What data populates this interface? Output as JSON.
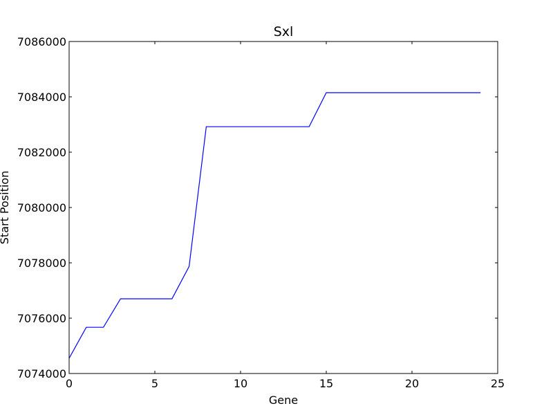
{
  "chart_data": {
    "type": "line",
    "title": "Sxl",
    "xlabel": "Gene",
    "ylabel": "Start Position",
    "xlim": [
      0,
      25
    ],
    "ylim": [
      7074000,
      7086000
    ],
    "xticks": [
      0,
      5,
      10,
      15,
      20,
      25
    ],
    "yticks": [
      7074000,
      7076000,
      7078000,
      7080000,
      7082000,
      7084000,
      7086000
    ],
    "grid": false,
    "series": [
      {
        "color": "#0000ff",
        "x": [
          0,
          1,
          2,
          3,
          4,
          5,
          6,
          7,
          8,
          9,
          10,
          11,
          12,
          13,
          14,
          15,
          16,
          17,
          18,
          19,
          20,
          21,
          22,
          23,
          24
        ],
        "y": [
          7074550,
          7075670,
          7075670,
          7076700,
          7076700,
          7076700,
          7076700,
          7077870,
          7082920,
          7082920,
          7082920,
          7082920,
          7082920,
          7082920,
          7082920,
          7084150,
          7084150,
          7084150,
          7084150,
          7084150,
          7084150,
          7084150,
          7084150,
          7084150,
          7084150
        ]
      }
    ]
  }
}
